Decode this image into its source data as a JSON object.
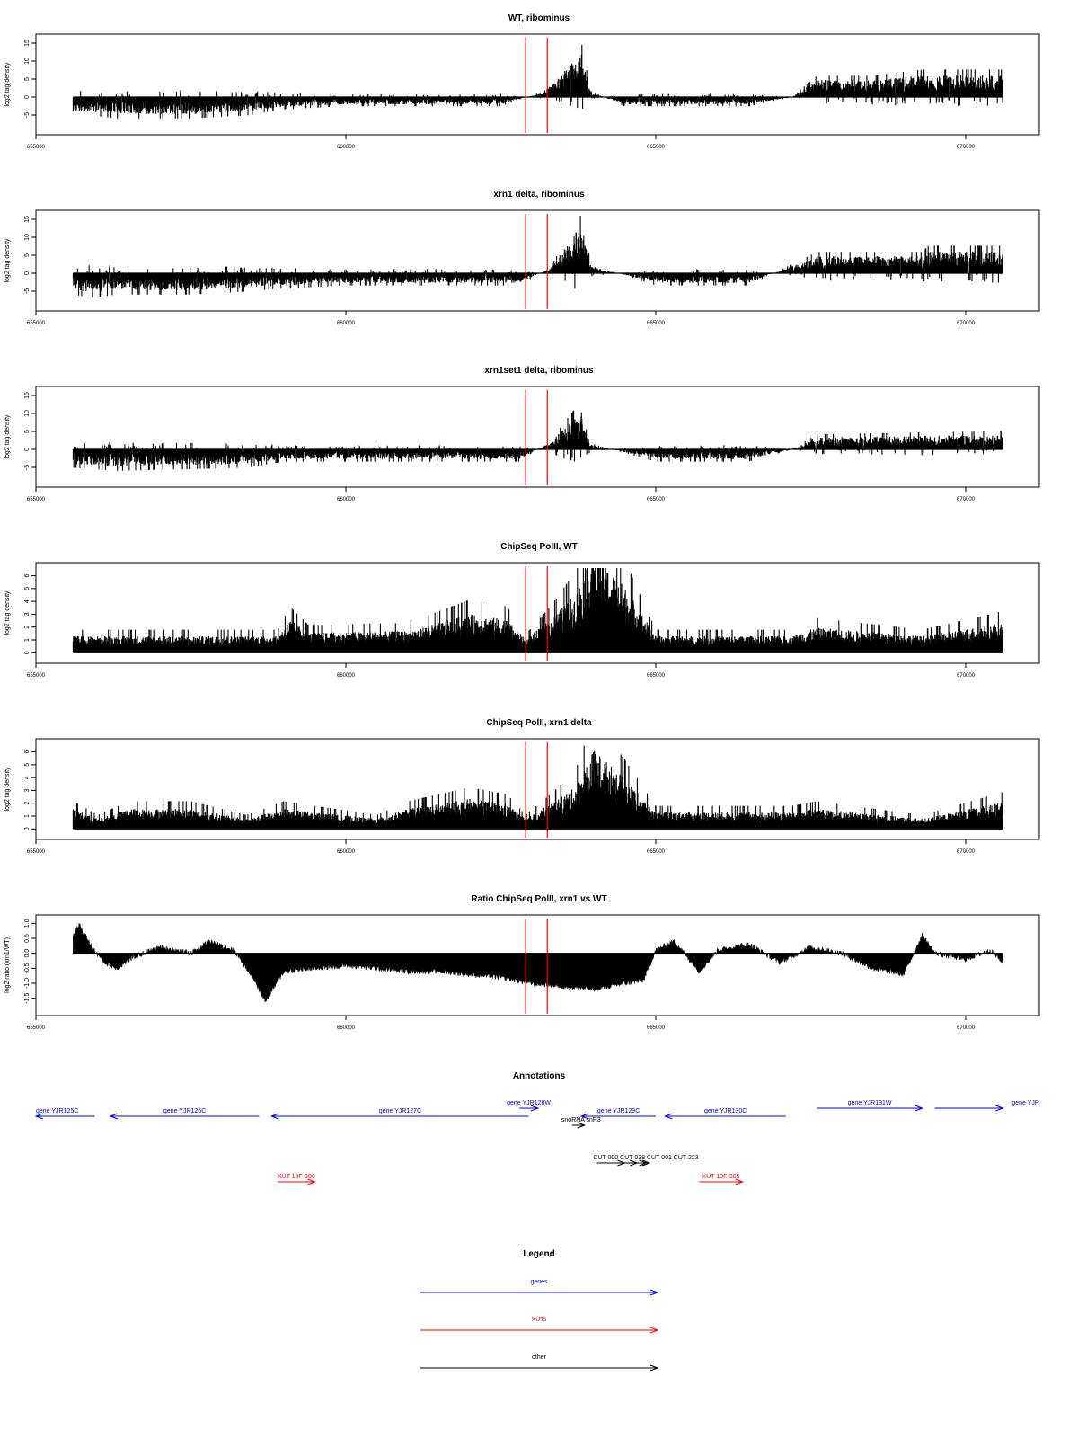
{
  "xaxis": {
    "range": [
      655000,
      670600
    ],
    "ticks": [
      655000,
      660000,
      665000,
      670000
    ],
    "tick_labels": [
      "655000",
      "660000",
      "665000",
      "670000"
    ]
  },
  "markers": {
    "positions": [
      662900,
      663250
    ],
    "color": "#ff0000"
  },
  "chart_data": [
    {
      "type": "bar",
      "title": "WT, ribominus",
      "ylabel": "log2 tag density",
      "ylim": [
        -9,
        16
      ],
      "yticks": [
        -5,
        0,
        5,
        10,
        15
      ],
      "ytick_labels": [
        "-5",
        "0",
        "5",
        "10",
        "15"
      ],
      "profile": [
        {
          "x": 655600,
          "value": -3
        },
        {
          "x": 655900,
          "value": -3
        },
        {
          "x": 656300,
          "value": -3.5
        },
        {
          "x": 657000,
          "value": -3.5
        },
        {
          "x": 657500,
          "value": -3.5
        },
        {
          "x": 658400,
          "value": -3
        },
        {
          "x": 659000,
          "value": -2
        },
        {
          "x": 660000,
          "value": -1.5
        },
        {
          "x": 661000,
          "value": -1.5
        },
        {
          "x": 662500,
          "value": -1.5
        },
        {
          "x": 663200,
          "value": 1
        },
        {
          "x": 663800,
          "value": 9
        },
        {
          "x": 663950,
          "value": 1
        },
        {
          "x": 664500,
          "value": -1.5
        },
        {
          "x": 665500,
          "value": -1.5
        },
        {
          "x": 666500,
          "value": -1.5
        },
        {
          "x": 667200,
          "value": 0
        },
        {
          "x": 667600,
          "value": 3.5
        },
        {
          "x": 668500,
          "value": 3.5
        },
        {
          "x": 669300,
          "value": 4.5
        },
        {
          "x": 670600,
          "value": 4.5
        }
      ]
    },
    {
      "type": "bar",
      "title": "xrn1 delta, ribominus",
      "ylabel": "log2 tag density",
      "ylim": [
        -9,
        16
      ],
      "yticks": [
        -5,
        0,
        5,
        10,
        15
      ],
      "ytick_labels": [
        "-5",
        "0",
        "5",
        "10",
        "15"
      ],
      "profile": [
        {
          "x": 655600,
          "value": -3.5
        },
        {
          "x": 655900,
          "value": -4
        },
        {
          "x": 656300,
          "value": -3.5
        },
        {
          "x": 657500,
          "value": -3.5
        },
        {
          "x": 658400,
          "value": -3
        },
        {
          "x": 659000,
          "value": -2.5
        },
        {
          "x": 660000,
          "value": -2
        },
        {
          "x": 661500,
          "value": -2
        },
        {
          "x": 662800,
          "value": -2
        },
        {
          "x": 663300,
          "value": 1
        },
        {
          "x": 663800,
          "value": 10
        },
        {
          "x": 663950,
          "value": 1.5
        },
        {
          "x": 665000,
          "value": -2
        },
        {
          "x": 666500,
          "value": -2
        },
        {
          "x": 667300,
          "value": 2
        },
        {
          "x": 667600,
          "value": 3.5
        },
        {
          "x": 669300,
          "value": 3.5
        },
        {
          "x": 669400,
          "value": 4.5
        },
        {
          "x": 670600,
          "value": 4.5
        }
      ]
    },
    {
      "type": "bar",
      "title": "xrn1set1 delta, ribominus",
      "ylabel": "log2 tag density",
      "ylim": [
        -9,
        16
      ],
      "yticks": [
        -5,
        0,
        5,
        10,
        15
      ],
      "ytick_labels": [
        "-5",
        "0",
        "5",
        "10",
        "15"
      ],
      "profile": [
        {
          "x": 655600,
          "value": -3
        },
        {
          "x": 656300,
          "value": -3.5
        },
        {
          "x": 658400,
          "value": -3
        },
        {
          "x": 659000,
          "value": -2
        },
        {
          "x": 661000,
          "value": -2
        },
        {
          "x": 662800,
          "value": -2
        },
        {
          "x": 663300,
          "value": 1.5
        },
        {
          "x": 663800,
          "value": 8
        },
        {
          "x": 663950,
          "value": 1
        },
        {
          "x": 665000,
          "value": -2
        },
        {
          "x": 666500,
          "value": -2
        },
        {
          "x": 667200,
          "value": 0
        },
        {
          "x": 667600,
          "value": 2.5
        },
        {
          "x": 670600,
          "value": 3
        }
      ]
    },
    {
      "type": "bar",
      "title": "ChipSeq PolII, WT",
      "ylabel": "log2 tag density",
      "ylim": [
        -0.4,
        6.6
      ],
      "yticks": [
        0,
        1,
        2,
        3,
        4,
        5,
        6
      ],
      "ytick_labels": [
        "0",
        "1",
        "2",
        "3",
        "4",
        "5",
        "6"
      ],
      "profile": [
        {
          "x": 655600,
          "value": 1
        },
        {
          "x": 658900,
          "value": 1
        },
        {
          "x": 659100,
          "value": 2
        },
        {
          "x": 659400,
          "value": 1.2
        },
        {
          "x": 661000,
          "value": 1.3
        },
        {
          "x": 662000,
          "value": 2.3
        },
        {
          "x": 662600,
          "value": 2
        },
        {
          "x": 662900,
          "value": 0.8
        },
        {
          "x": 663300,
          "value": 2
        },
        {
          "x": 663700,
          "value": 3.5
        },
        {
          "x": 664000,
          "value": 6
        },
        {
          "x": 664500,
          "value": 4
        },
        {
          "x": 665000,
          "value": 1
        },
        {
          "x": 667200,
          "value": 1
        },
        {
          "x": 667600,
          "value": 1.5
        },
        {
          "x": 669300,
          "value": 1
        },
        {
          "x": 670600,
          "value": 1.8
        }
      ]
    },
    {
      "type": "bar",
      "title": "ChipSeq PolII, xrn1 delta",
      "ylabel": "log2 tag density",
      "ylim": [
        -0.4,
        6.6
      ],
      "yticks": [
        0,
        1,
        2,
        3,
        4,
        5,
        6
      ],
      "ytick_labels": [
        "0",
        "1",
        "2",
        "3",
        "4",
        "5",
        "6"
      ],
      "profile": [
        {
          "x": 655600,
          "value": 1.2
        },
        {
          "x": 656000,
          "value": 0.6
        },
        {
          "x": 656500,
          "value": 1.2
        },
        {
          "x": 657500,
          "value": 1.2
        },
        {
          "x": 658400,
          "value": 0.6
        },
        {
          "x": 659000,
          "value": 1.2
        },
        {
          "x": 660500,
          "value": 0.6
        },
        {
          "x": 661000,
          "value": 1.2
        },
        {
          "x": 662000,
          "value": 1.8
        },
        {
          "x": 662600,
          "value": 1.5
        },
        {
          "x": 662900,
          "value": 0.6
        },
        {
          "x": 663300,
          "value": 1.5
        },
        {
          "x": 663700,
          "value": 2.5
        },
        {
          "x": 664000,
          "value": 4.8
        },
        {
          "x": 664500,
          "value": 3
        },
        {
          "x": 665000,
          "value": 1
        },
        {
          "x": 667200,
          "value": 1
        },
        {
          "x": 667600,
          "value": 1.2
        },
        {
          "x": 669300,
          "value": 0.6
        },
        {
          "x": 670600,
          "value": 1.6
        }
      ]
    },
    {
      "type": "area",
      "title": "Ratio ChipSeq PolII, xrn1 vs WT",
      "ylabel": "log2 ratio (xrn1/WT)",
      "ylim": [
        -1.9,
        1.1
      ],
      "yticks": [
        -1.5,
        -1.0,
        -0.5,
        0.0,
        0.5,
        1.0
      ],
      "ytick_labels": [
        "-1.5",
        "-1.0",
        "-0.5",
        "0.0",
        "0.5",
        "1.0"
      ],
      "profile": [
        {
          "x": 655600,
          "value": 0.6
        },
        {
          "x": 655700,
          "value": 0.95
        },
        {
          "x": 655900,
          "value": 0.2
        },
        {
          "x": 656100,
          "value": -0.3
        },
        {
          "x": 656300,
          "value": -0.5
        },
        {
          "x": 656600,
          "value": -0.1
        },
        {
          "x": 657000,
          "value": 0.2
        },
        {
          "x": 657500,
          "value": 0.0
        },
        {
          "x": 657800,
          "value": 0.4
        },
        {
          "x": 658200,
          "value": 0.1
        },
        {
          "x": 658500,
          "value": -0.8
        },
        {
          "x": 658700,
          "value": -1.6
        },
        {
          "x": 659000,
          "value": -0.6
        },
        {
          "x": 659500,
          "value": -0.5
        },
        {
          "x": 660000,
          "value": -0.4
        },
        {
          "x": 660500,
          "value": -0.5
        },
        {
          "x": 661000,
          "value": -0.6
        },
        {
          "x": 661500,
          "value": -0.6
        },
        {
          "x": 662000,
          "value": -0.7
        },
        {
          "x": 662500,
          "value": -0.8
        },
        {
          "x": 663000,
          "value": -1.0
        },
        {
          "x": 663500,
          "value": -1.1
        },
        {
          "x": 664000,
          "value": -1.2
        },
        {
          "x": 664500,
          "value": -1.0
        },
        {
          "x": 664800,
          "value": -0.9
        },
        {
          "x": 665000,
          "value": 0.1
        },
        {
          "x": 665300,
          "value": 0.4
        },
        {
          "x": 665700,
          "value": -0.6
        },
        {
          "x": 666000,
          "value": 0.1
        },
        {
          "x": 666500,
          "value": 0.3
        },
        {
          "x": 667000,
          "value": -0.3
        },
        {
          "x": 667500,
          "value": 0.2
        },
        {
          "x": 668000,
          "value": 0.0
        },
        {
          "x": 668500,
          "value": -0.5
        },
        {
          "x": 669000,
          "value": -0.7
        },
        {
          "x": 669300,
          "value": 0.6
        },
        {
          "x": 669500,
          "value": 0.0
        },
        {
          "x": 670000,
          "value": -0.2
        },
        {
          "x": 670400,
          "value": 0.1
        },
        {
          "x": 670600,
          "value": -0.3
        }
      ]
    }
  ],
  "annotations": {
    "title": "Annotations",
    "features": [
      {
        "label": "gene YJR125C",
        "type": "gene",
        "strand": "-",
        "start": 655000,
        "end": 655950
      },
      {
        "label": "gene YJR126C",
        "type": "gene",
        "strand": "-",
        "start": 656200,
        "end": 658600
      },
      {
        "label": "gene YJR127C",
        "type": "gene",
        "strand": "-",
        "start": 658800,
        "end": 662950
      },
      {
        "label": "gene YJR128W",
        "type": "gene",
        "strand": "+",
        "start": 662800,
        "end": 663100
      },
      {
        "label": "gene YJR129C",
        "type": "gene",
        "strand": "-",
        "start": 663800,
        "end": 665000
      },
      {
        "label": "snoRNA snR3",
        "type": "other",
        "strand": "+",
        "start": 663650,
        "end": 663850
      },
      {
        "label": "gene YJR130C",
        "type": "gene",
        "strand": "-",
        "start": 665150,
        "end": 667100
      },
      {
        "label": "gene YJR131W",
        "type": "gene",
        "strand": "+",
        "start": 667600,
        "end": 669300
      },
      {
        "label": "gene YJR",
        "type": "gene",
        "strand": "+",
        "start": 669500,
        "end": 670600
      },
      {
        "label": "CUT 000",
        "type": "other",
        "strand": "+",
        "start": 664050,
        "end": 664500
      },
      {
        "label": "CUT 038",
        "type": "other",
        "strand": "+",
        "start": 664250,
        "end": 664700
      },
      {
        "label": "CUT 001",
        "type": "other",
        "strand": "+",
        "start": 664450,
        "end": 664900
      },
      {
        "label": "CUT 223",
        "type": "other",
        "strand": "+",
        "start": 664600,
        "end": 664850
      },
      {
        "label": "XUT 10F-300",
        "type": "xut",
        "strand": "+",
        "start": 658900,
        "end": 659500
      },
      {
        "label": "XUT 10F-305",
        "type": "xut",
        "strand": "+",
        "start": 665700,
        "end": 666400
      }
    ],
    "cut_label": "CUT 000 CUT 038 CUT 001 CUT 223"
  },
  "legend": {
    "title": "Legend",
    "items": [
      {
        "label": "genes",
        "color": "#0000ff"
      },
      {
        "label": "XUTs",
        "color": "#ff0000"
      },
      {
        "label": "other",
        "color": "#000000"
      }
    ]
  },
  "colors": {
    "gene": "#0000ff",
    "xut": "#ff0000",
    "other": "#000000",
    "marker": "#ff0000"
  }
}
